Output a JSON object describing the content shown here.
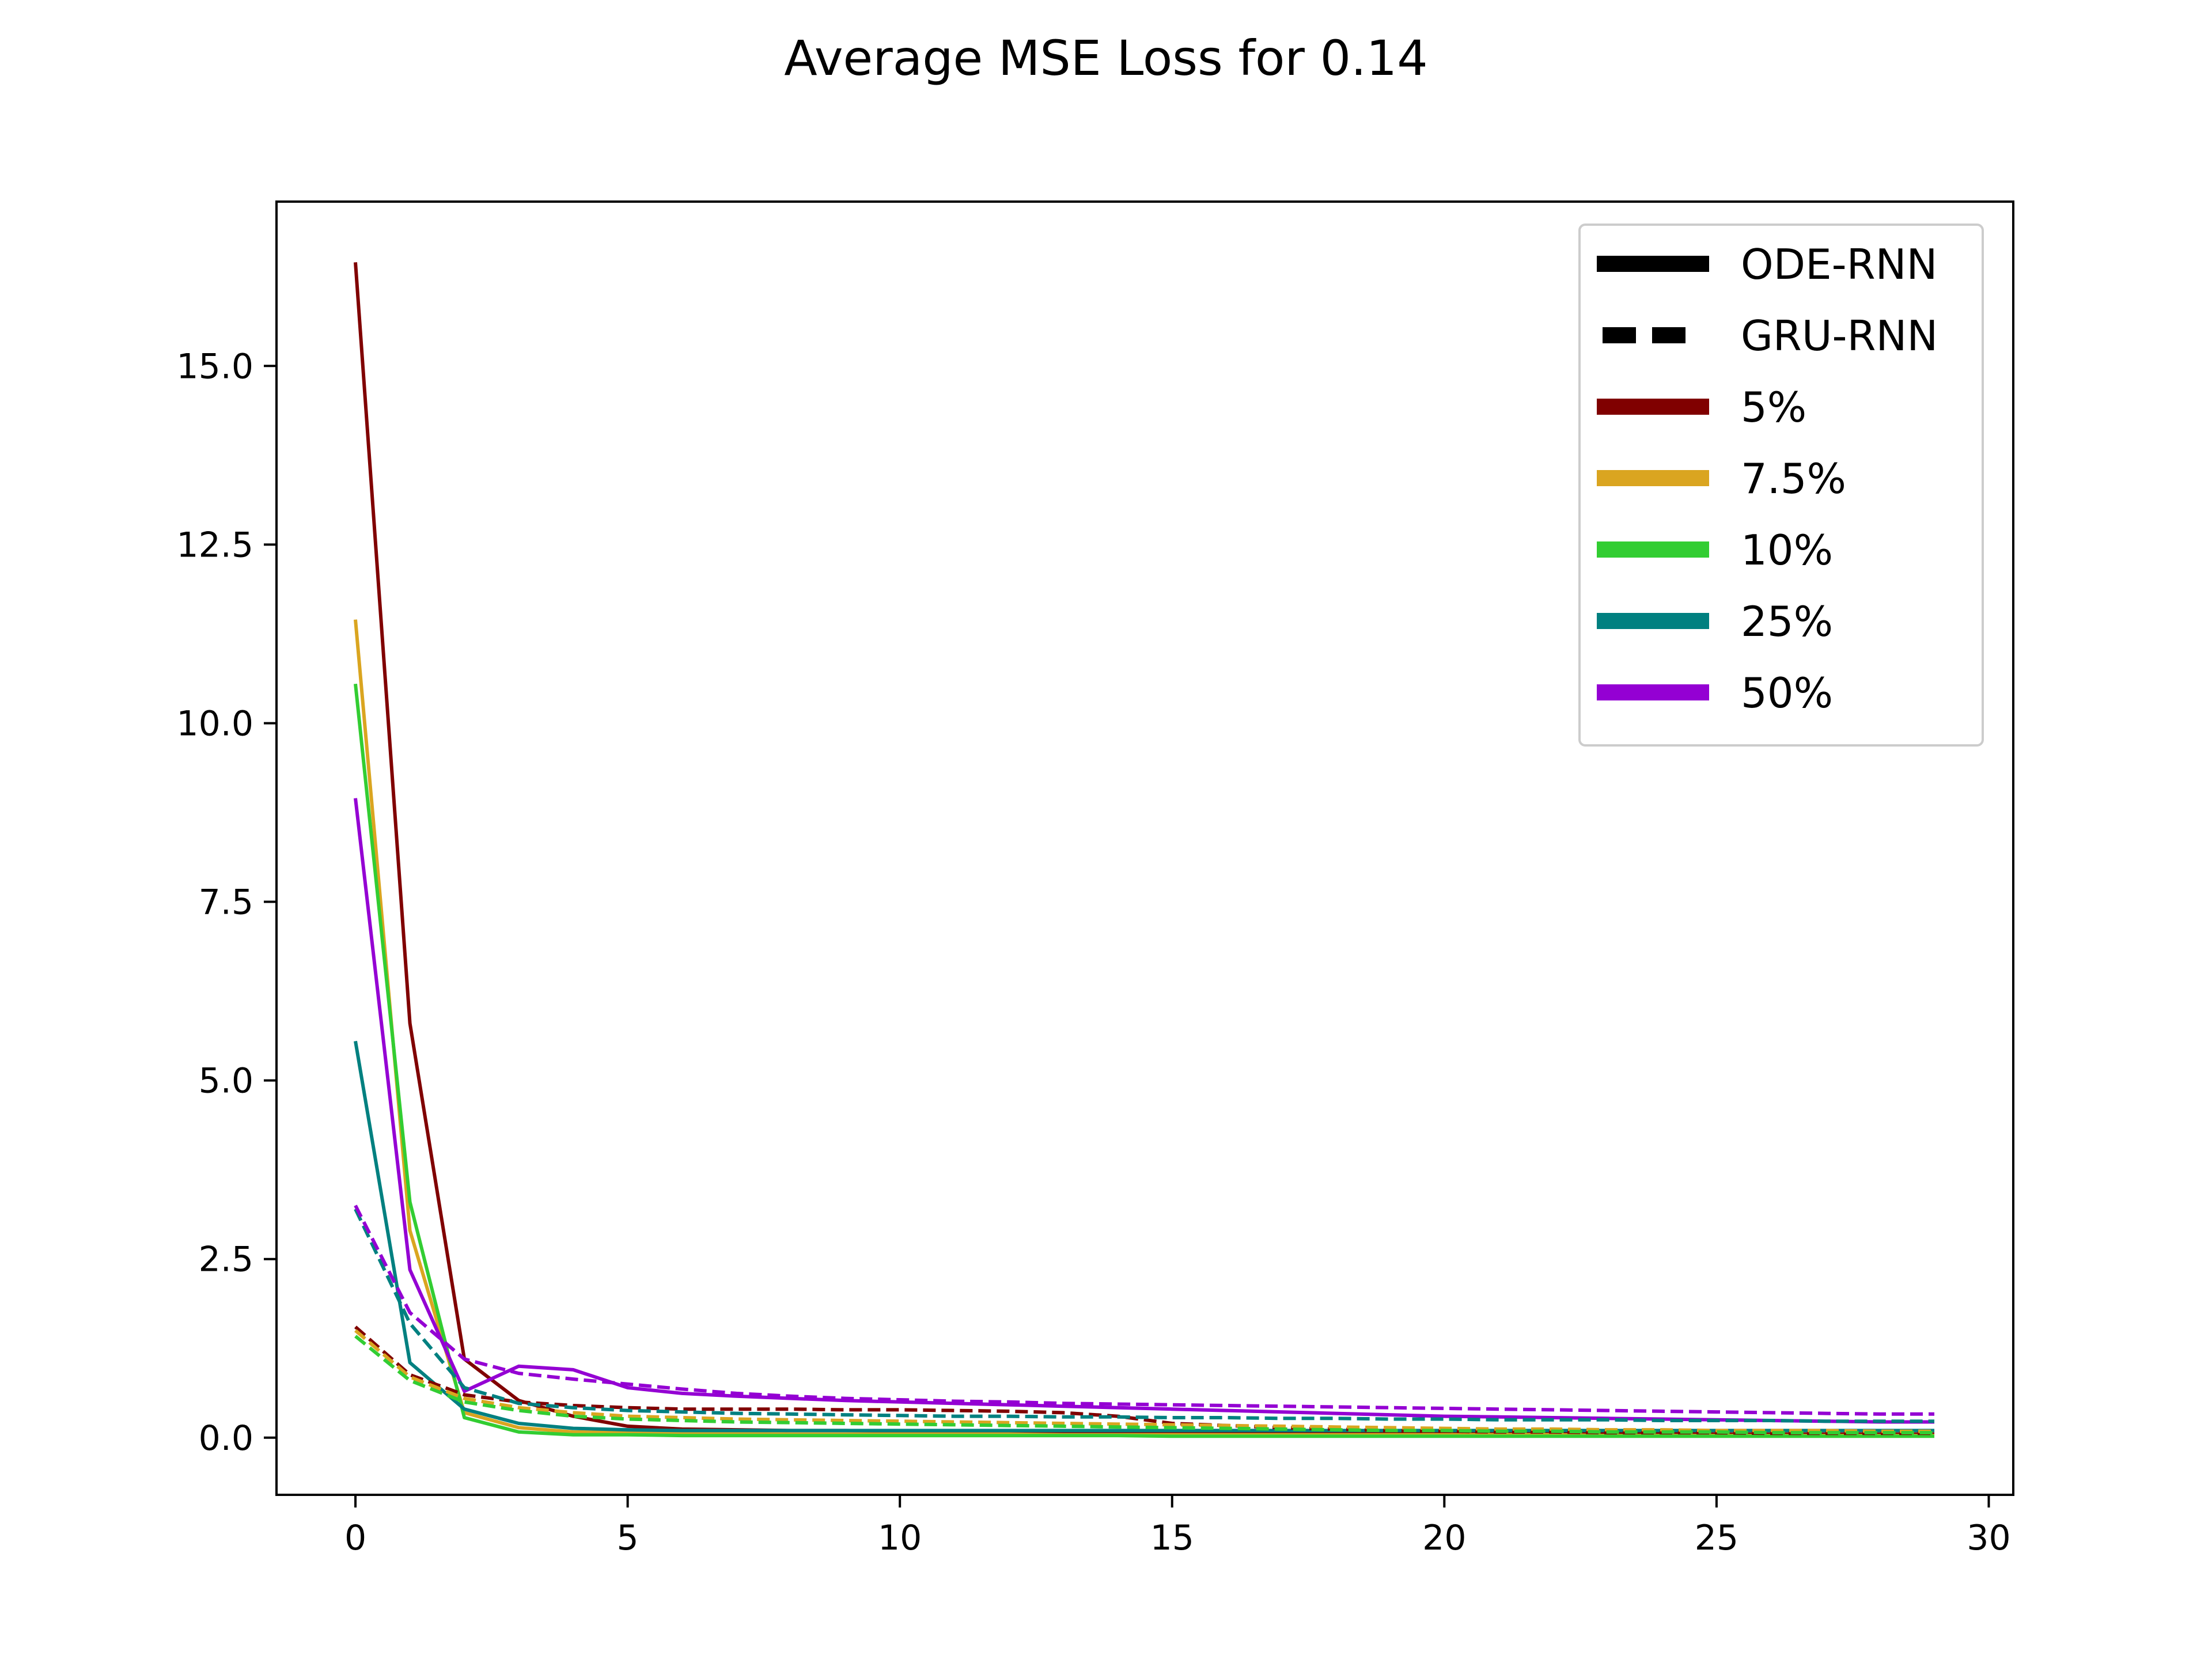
{
  "chart_data": {
    "type": "line",
    "title": "Average MSE Loss for 0.14",
    "xlabel": "",
    "ylabel": "",
    "xlim": [
      -1.45,
      30.45
    ],
    "ylim": [
      -0.8,
      17.3
    ],
    "xticks": [
      0,
      5,
      10,
      15,
      20,
      25,
      30
    ],
    "yticks": [
      0.0,
      2.5,
      5.0,
      7.5,
      10.0,
      12.5,
      15.0
    ],
    "xtick_labels": [
      "0",
      "5",
      "10",
      "15",
      "20",
      "25",
      "30"
    ],
    "ytick_labels": [
      "0.0",
      "2.5",
      "5.0",
      "7.5",
      "10.0",
      "12.5",
      "15.0"
    ],
    "grid": false,
    "legend_position": "top-right",
    "legend": [
      {
        "label": "ODE-RNN",
        "color": "#000000",
        "style": "solid"
      },
      {
        "label": "GRU-RNN",
        "color": "#000000",
        "style": "dashed"
      },
      {
        "label": "5%",
        "color": "#800000",
        "style": "solid"
      },
      {
        "label": "7.5%",
        "color": "#DAA520",
        "style": "solid"
      },
      {
        "label": "10%",
        "color": "#32CD32",
        "style": "solid"
      },
      {
        "label": "25%",
        "color": "#008080",
        "style": "solid"
      },
      {
        "label": "50%",
        "color": "#9400D3",
        "style": "solid"
      }
    ],
    "x": [
      0,
      1,
      2,
      3,
      4,
      5,
      6,
      7,
      8,
      9,
      10,
      11,
      12,
      13,
      14,
      15,
      16,
      17,
      18,
      19,
      20,
      21,
      22,
      23,
      24,
      25,
      26,
      27,
      28,
      29
    ],
    "series": [
      {
        "group": "5%",
        "model": "ODE-RNN",
        "color": "#800000",
        "style": "solid",
        "values": [
          16.45,
          5.8,
          1.1,
          0.52,
          0.3,
          0.16,
          0.12,
          0.11,
          0.1,
          0.1,
          0.09,
          0.09,
          0.08,
          0.08,
          0.08,
          0.07,
          0.07,
          0.07,
          0.07,
          0.06,
          0.06,
          0.06,
          0.06,
          0.06,
          0.06,
          0.05,
          0.05,
          0.05,
          0.05,
          0.05
        ]
      },
      {
        "group": "7.5%",
        "model": "ODE-RNN",
        "color": "#DAA520",
        "style": "solid",
        "values": [
          11.45,
          2.9,
          0.35,
          0.14,
          0.08,
          0.07,
          0.06,
          0.06,
          0.05,
          0.05,
          0.05,
          0.05,
          0.05,
          0.04,
          0.04,
          0.04,
          0.04,
          0.04,
          0.04,
          0.04,
          0.04,
          0.04,
          0.04,
          0.03,
          0.03,
          0.03,
          0.03,
          0.03,
          0.03,
          0.03
        ]
      },
      {
        "group": "10%",
        "model": "ODE-RNN",
        "color": "#32CD32",
        "style": "solid",
        "values": [
          10.55,
          3.3,
          0.28,
          0.08,
          0.04,
          0.04,
          0.03,
          0.03,
          0.03,
          0.03,
          0.03,
          0.03,
          0.03,
          0.03,
          0.03,
          0.02,
          0.02,
          0.02,
          0.02,
          0.02,
          0.02,
          0.02,
          0.02,
          0.02,
          0.02,
          0.02,
          0.02,
          0.02,
          0.02,
          0.02
        ]
      },
      {
        "group": "25%",
        "model": "ODE-RNN",
        "color": "#008080",
        "style": "solid",
        "values": [
          5.55,
          1.05,
          0.4,
          0.2,
          0.13,
          0.11,
          0.1,
          0.1,
          0.1,
          0.1,
          0.1,
          0.1,
          0.1,
          0.1,
          0.1,
          0.1,
          0.1,
          0.1,
          0.1,
          0.1,
          0.1,
          0.1,
          0.1,
          0.1,
          0.1,
          0.1,
          0.1,
          0.1,
          0.1,
          0.1
        ]
      },
      {
        "group": "50%",
        "model": "ODE-RNN",
        "color": "#9400D3",
        "style": "solid",
        "values": [
          8.95,
          2.35,
          0.65,
          1.0,
          0.95,
          0.7,
          0.62,
          0.58,
          0.55,
          0.52,
          0.5,
          0.48,
          0.46,
          0.44,
          0.42,
          0.4,
          0.38,
          0.36,
          0.34,
          0.32,
          0.3,
          0.29,
          0.28,
          0.27,
          0.26,
          0.25,
          0.24,
          0.23,
          0.22,
          0.22
        ]
      },
      {
        "group": "5%",
        "model": "GRU-RNN",
        "color": "#800000",
        "style": "dashed",
        "values": [
          1.55,
          0.88,
          0.6,
          0.5,
          0.45,
          0.42,
          0.4,
          0.4,
          0.4,
          0.39,
          0.39,
          0.38,
          0.37,
          0.35,
          0.3,
          0.2,
          0.17,
          0.14,
          0.12,
          0.1,
          0.09,
          0.08,
          0.08,
          0.07,
          0.07,
          0.07,
          0.06,
          0.06,
          0.06,
          0.06
        ]
      },
      {
        "group": "7.5%",
        "model": "GRU-RNN",
        "color": "#DAA520",
        "style": "dashed",
        "values": [
          1.5,
          0.85,
          0.55,
          0.42,
          0.35,
          0.3,
          0.28,
          0.26,
          0.25,
          0.24,
          0.23,
          0.22,
          0.21,
          0.2,
          0.19,
          0.18,
          0.17,
          0.16,
          0.15,
          0.14,
          0.13,
          0.12,
          0.12,
          0.11,
          0.11,
          0.1,
          0.1,
          0.1,
          0.09,
          0.09
        ]
      },
      {
        "group": "10%",
        "model": "GRU-RNN",
        "color": "#32CD32",
        "style": "dashed",
        "values": [
          1.42,
          0.8,
          0.5,
          0.38,
          0.3,
          0.26,
          0.24,
          0.22,
          0.21,
          0.2,
          0.19,
          0.18,
          0.17,
          0.16,
          0.15,
          0.14,
          0.13,
          0.12,
          0.11,
          0.1,
          0.1,
          0.09,
          0.09,
          0.08,
          0.08,
          0.08,
          0.07,
          0.07,
          0.07,
          0.07
        ]
      },
      {
        "group": "25%",
        "model": "GRU-RNN",
        "color": "#008080",
        "style": "dashed",
        "values": [
          3.2,
          1.6,
          0.7,
          0.48,
          0.42,
          0.38,
          0.36,
          0.34,
          0.33,
          0.32,
          0.31,
          0.3,
          0.3,
          0.29,
          0.29,
          0.28,
          0.28,
          0.27,
          0.27,
          0.26,
          0.26,
          0.25,
          0.25,
          0.25,
          0.24,
          0.24,
          0.24,
          0.23,
          0.23,
          0.23
        ]
      },
      {
        "group": "50%",
        "model": "GRU-RNN",
        "color": "#9400D3",
        "style": "dashed",
        "values": [
          3.25,
          1.75,
          1.1,
          0.9,
          0.82,
          0.75,
          0.68,
          0.62,
          0.58,
          0.55,
          0.53,
          0.51,
          0.5,
          0.48,
          0.47,
          0.46,
          0.45,
          0.44,
          0.43,
          0.42,
          0.41,
          0.4,
          0.39,
          0.38,
          0.37,
          0.36,
          0.35,
          0.34,
          0.33,
          0.33
        ]
      }
    ]
  }
}
